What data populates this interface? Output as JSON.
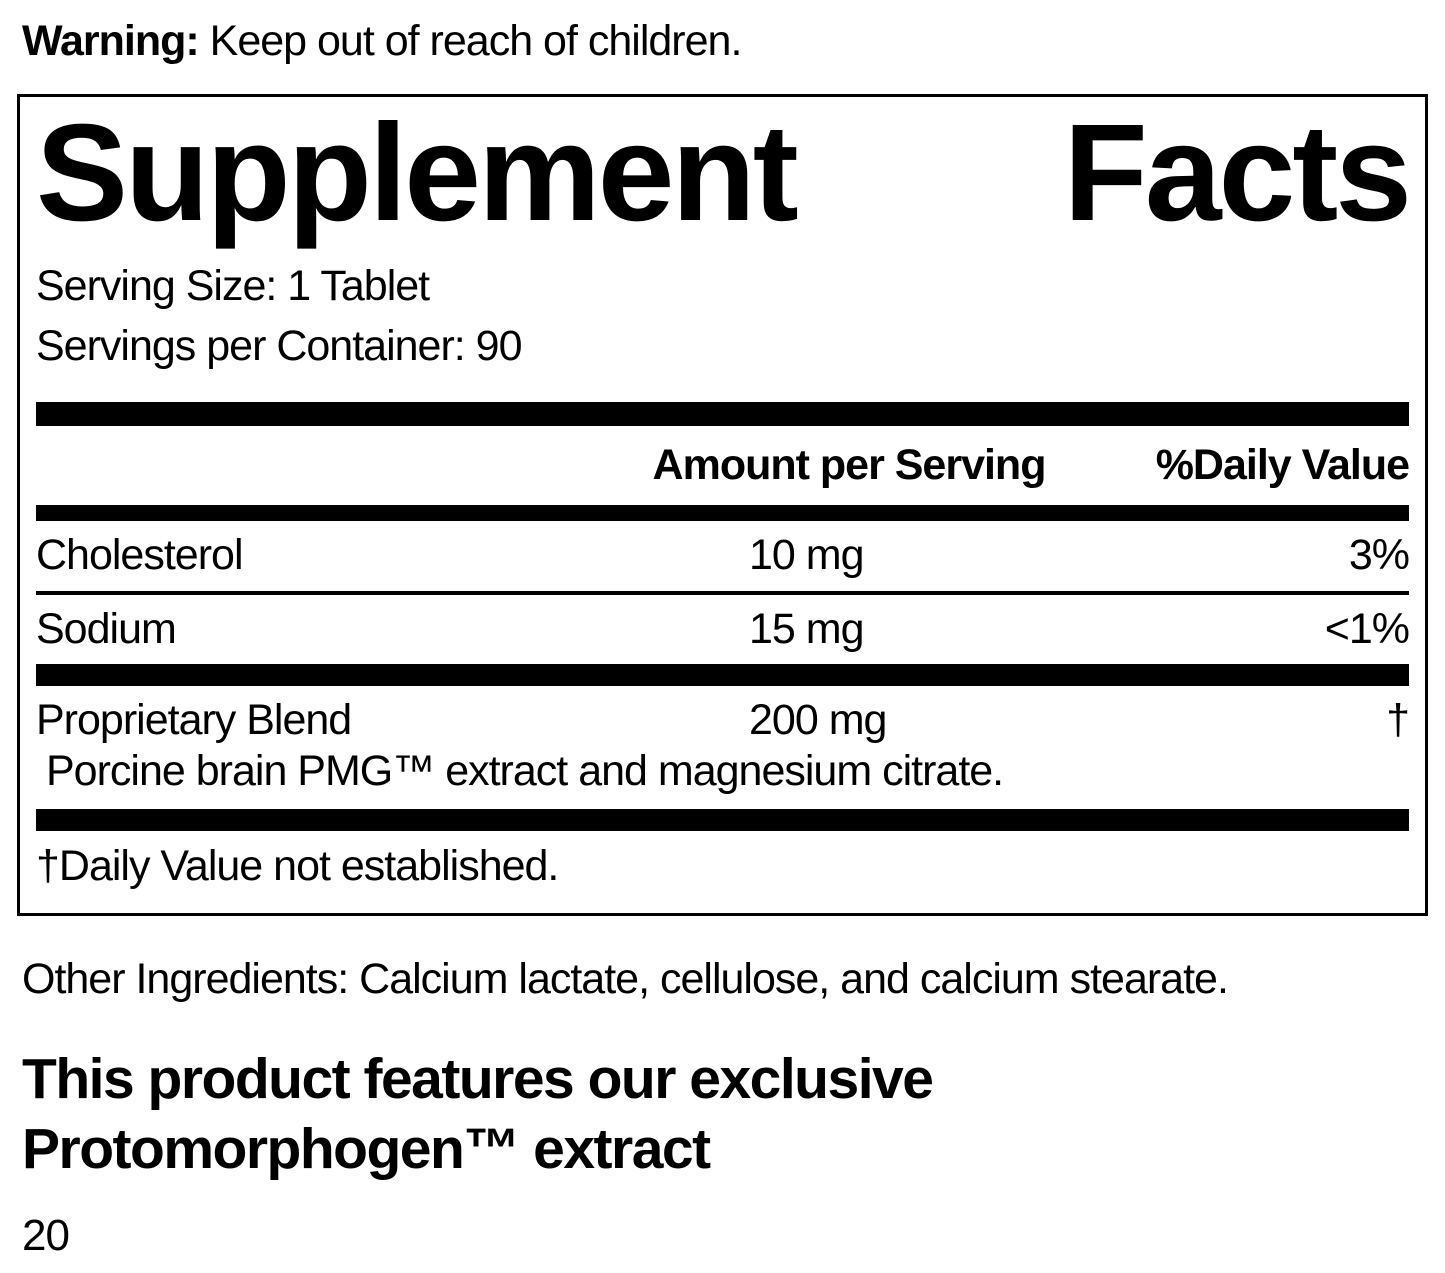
{
  "warning": {
    "label": "Warning:",
    "text": " Keep out of reach of children."
  },
  "supplement_facts": {
    "title": {
      "left": "Supplement",
      "right": "Facts"
    },
    "serving_size": "Serving Size: 1 Tablet",
    "servings_per_container": "Servings per Container: 90",
    "columns": {
      "amount": "Amount per Serving",
      "daily_value": "%Daily Value"
    },
    "rows": [
      {
        "name": "Cholesterol",
        "amount": "10 mg",
        "daily_value": "3%"
      },
      {
        "name": "Sodium",
        "amount": "15 mg",
        "daily_value": "<1%"
      },
      {
        "name": "Proprietary Blend",
        "amount": "200 mg",
        "daily_value": "†",
        "detail": "Porcine brain PMG™ extract and magnesium citrate."
      }
    ],
    "footnote": "†Daily Value not established."
  },
  "other_ingredients": "Other Ingredients: Calcium lactate, cellulose, and calcium stearate.",
  "feature": {
    "line1": "This product features our exclusive",
    "line2": "Protomorphogen™ extract"
  },
  "page_number": "20"
}
